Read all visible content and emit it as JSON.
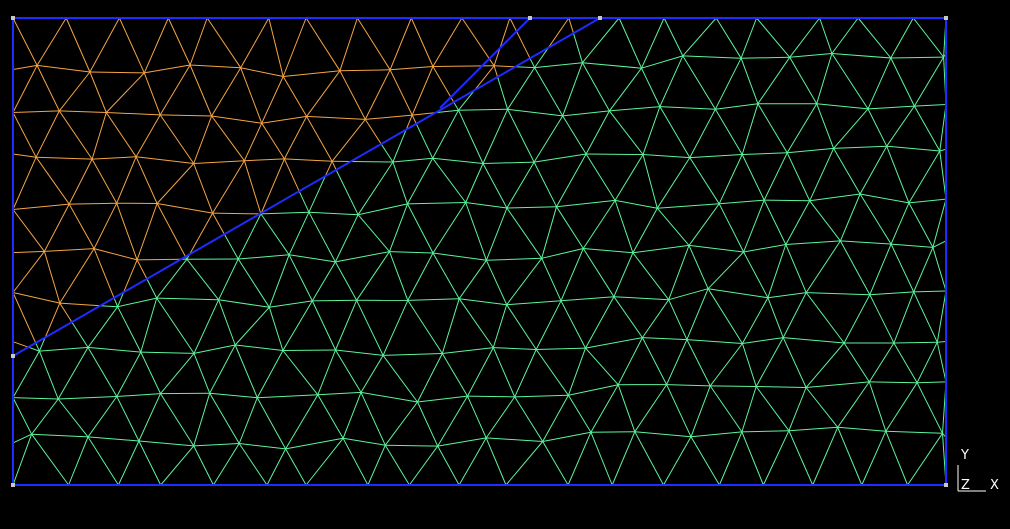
{
  "axes": {
    "y_label": "Y",
    "z_label": "Z",
    "x_label": "X"
  },
  "colors": {
    "background": "#000000",
    "boundary": "#1f2bff",
    "mesh_region_upper": "#f5a542",
    "mesh_region_lower": "#5cf59a",
    "vertex": "#c8c8c8",
    "triad": "#ffffff"
  },
  "mesh": {
    "element_type": "triangle",
    "regions": [
      "upper-left",
      "lower-right"
    ]
  }
}
